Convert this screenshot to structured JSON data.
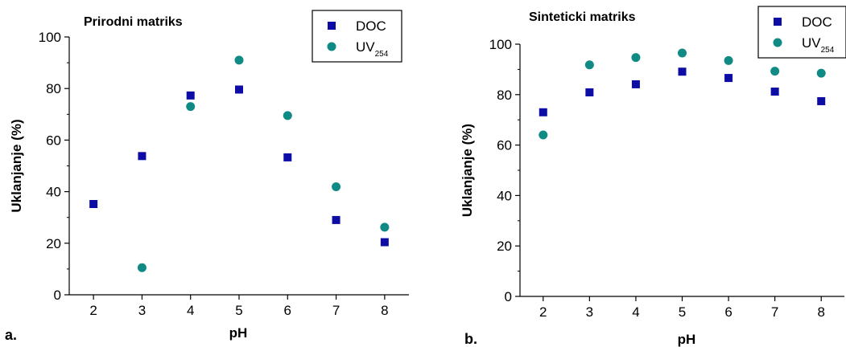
{
  "chart_data": [
    {
      "type": "scatter",
      "panel_label": "a.",
      "title": "Prirodni matriks",
      "xlabel": "pH",
      "ylabel": "Uklanjanje (%)",
      "xlim": [
        1.5,
        8.5
      ],
      "ylim": [
        0,
        100
      ],
      "xticks": [
        2,
        3,
        4,
        5,
        6,
        7,
        8
      ],
      "yticks": [
        0,
        20,
        40,
        60,
        80,
        100
      ],
      "legend": "top-right",
      "series": [
        {
          "name": "DOC",
          "sub": "",
          "marker": "square",
          "color": "#0d0da6",
          "x": [
            2,
            3,
            4,
            5,
            6,
            7,
            8
          ],
          "y": [
            35.2,
            53.8,
            77.3,
            79.6,
            53.3,
            29,
            20.4
          ]
        },
        {
          "name": "UV",
          "sub": "254",
          "marker": "circle",
          "color": "#0f8a84",
          "x": [
            3,
            4,
            5,
            6,
            7,
            8
          ],
          "y": [
            10.5,
            73,
            91,
            69.5,
            41.9,
            26.2
          ]
        }
      ]
    },
    {
      "type": "scatter",
      "panel_label": "b.",
      "title": "Sinteticki matriks",
      "xlabel": "pH",
      "ylabel": "Uklanjanje (%)",
      "xlim": [
        1.5,
        8.5
      ],
      "ylim": [
        0,
        100
      ],
      "xticks": [
        2,
        3,
        4,
        5,
        6,
        7,
        8
      ],
      "yticks": [
        0,
        20,
        40,
        60,
        80,
        100
      ],
      "legend": "top-right",
      "series": [
        {
          "name": "DOC",
          "sub": "",
          "marker": "square",
          "color": "#0d0da6",
          "x": [
            2,
            3,
            4,
            5,
            6,
            7,
            8
          ],
          "y": [
            73,
            80.9,
            84.1,
            89.1,
            86.6,
            81.2,
            77.4
          ]
        },
        {
          "name": "UV",
          "sub": "254",
          "marker": "circle",
          "color": "#0f8a84",
          "x": [
            2,
            3,
            4,
            5,
            6,
            7,
            8
          ],
          "y": [
            64,
            91.8,
            94.7,
            96.5,
            93.5,
            89.3,
            88.5
          ]
        }
      ]
    }
  ]
}
